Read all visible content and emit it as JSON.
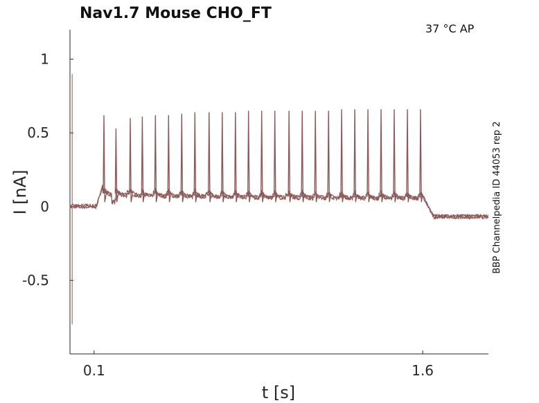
{
  "chart_data": {
    "type": "line",
    "title": "Nav1.7  Mouse  CHO_FT",
    "annotation": "37 °C  AP",
    "side_label": "BBP Channelpedia ID 44053 rep 2",
    "xlabel": "t [s]",
    "ylabel": "I [nA]",
    "xlim": [
      -0.01,
      1.9
    ],
    "ylim": [
      -1.0,
      1.2
    ],
    "x_ticks": [
      0.1,
      1.6
    ],
    "x_tick_labels": [
      "0.1",
      "1.6"
    ],
    "y_ticks": [
      1,
      0.5,
      0,
      -0.5
    ],
    "y_tick_labels": [
      "1",
      "0.5",
      "0",
      "-0.5"
    ],
    "grid": false,
    "line_color": "#8b5a5a",
    "stimulus": {
      "start": 0.11,
      "end": 1.6,
      "baseline": 0.0,
      "plateau": 0.07,
      "post": -0.07
    },
    "spike_times": [
      0.145,
      0.2,
      0.265,
      0.32,
      0.38,
      0.44,
      0.5,
      0.56,
      0.625,
      0.685,
      0.745,
      0.805,
      0.865,
      0.925,
      0.99,
      1.05,
      1.11,
      1.17,
      1.23,
      1.29,
      1.35,
      1.41,
      1.47,
      1.53,
      1.59
    ],
    "spike_peaks": [
      0.62,
      0.53,
      0.6,
      0.61,
      0.62,
      0.62,
      0.63,
      0.64,
      0.64,
      0.64,
      0.64,
      0.65,
      0.65,
      0.65,
      0.65,
      0.65,
      0.65,
      0.65,
      0.66,
      0.66,
      0.66,
      0.66,
      0.66,
      0.66,
      0.66
    ],
    "series": [
      {
        "values_note": ""
      }
    ]
  }
}
